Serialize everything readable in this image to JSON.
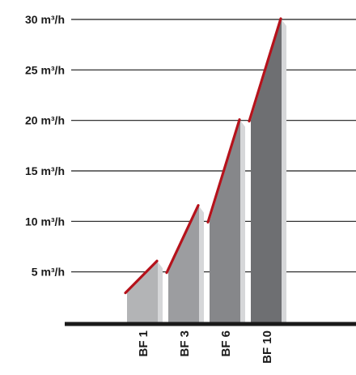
{
  "chart_data": {
    "type": "bar",
    "title": "",
    "xlabel": "",
    "ylabel": "",
    "ylim": [
      0,
      30
    ],
    "grid": true,
    "unit": "m³/h",
    "yticks": [
      {
        "value": 5,
        "label": "5 m³/h"
      },
      {
        "value": 10,
        "label": "10 m³/h"
      },
      {
        "value": 15,
        "label": "15 m³/h"
      },
      {
        "value": 20,
        "label": "20 m³/h"
      },
      {
        "value": 25,
        "label": "25 m³/h"
      },
      {
        "value": 30,
        "label": "30 m³/h"
      }
    ],
    "categories": [
      "BF 1",
      "BF 3",
      "BF 6",
      "BF 10"
    ],
    "ranges": [
      {
        "category": "BF 1",
        "min": 3,
        "max": 6
      },
      {
        "category": "BF 3",
        "min": 5,
        "max": 11.5
      },
      {
        "category": "BF 6",
        "min": 10,
        "max": 20
      },
      {
        "category": "BF 10",
        "min": 20,
        "max": 30
      }
    ],
    "colors": {
      "bars": [
        "#b3b4b6",
        "#9c9da0",
        "#86878a",
        "#6e6f72"
      ],
      "bar_side": "#d6d7d9",
      "range_line": "#b5121b",
      "grid": "#1a1a1a",
      "baseline": "#1a1a1a"
    }
  }
}
